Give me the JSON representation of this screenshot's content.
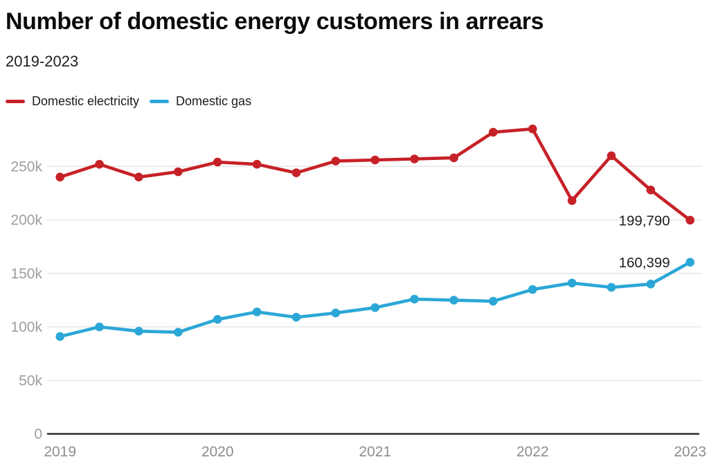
{
  "header": {
    "title": "Number of domestic energy customers in arrears",
    "subtitle": "2019-2023"
  },
  "legend": {
    "items": [
      {
        "label": "Domestic electricity",
        "color": "#c62127"
      },
      {
        "label": "Domestic gas",
        "color": "#2ba7d6"
      }
    ]
  },
  "colors": {
    "electricity": "#c62127",
    "gas": "#2ba7d6",
    "gridline": "#e3e3e3",
    "axis_line": "#2e2e2e",
    "y_tick_label": "#9e9e9e",
    "x_tick_label": "#8d8d8d",
    "end_label": "#1f1f1f"
  },
  "chart_data": {
    "type": "line",
    "title": "Number of domestic energy customers in arrears",
    "subtitle": "2019-2023",
    "x": [
      "2019 Q1",
      "2019 Q2",
      "2019 Q3",
      "2019 Q4",
      "2020 Q1",
      "2020 Q2",
      "2020 Q3",
      "2020 Q4",
      "2021 Q1",
      "2021 Q2",
      "2021 Q3",
      "2021 Q4",
      "2022 Q1",
      "2022 Q2",
      "2022 Q3",
      "2022 Q4",
      "2023 Q1"
    ],
    "x_tick_labels": [
      "2019",
      "2020",
      "2021",
      "2022",
      "2023"
    ],
    "y_ticks": [
      {
        "value": 0,
        "label": "0"
      },
      {
        "value": 50000,
        "label": "50k"
      },
      {
        "value": 100000,
        "label": "100k"
      },
      {
        "value": 150000,
        "label": "150k"
      },
      {
        "value": 200000,
        "label": "200k"
      },
      {
        "value": 250000,
        "label": "250k"
      }
    ],
    "ylim": [
      0,
      290000
    ],
    "grid": "horizontal",
    "legend_position": "top-left",
    "series": [
      {
        "name": "Domestic electricity",
        "color": "#c62127",
        "values": [
          240000,
          252000,
          240000,
          245000,
          254000,
          252000,
          244000,
          255000,
          256000,
          257000,
          258000,
          282000,
          285000,
          218000,
          260000,
          228000,
          199790
        ],
        "end_label": "199,790"
      },
      {
        "name": "Domestic gas",
        "color": "#2ba7d6",
        "values": [
          91000,
          100000,
          96000,
          95000,
          107000,
          114000,
          109000,
          113000,
          118000,
          126000,
          125000,
          124000,
          135000,
          141000,
          137000,
          140000,
          160399
        ],
        "end_label": "160,399"
      }
    ]
  }
}
